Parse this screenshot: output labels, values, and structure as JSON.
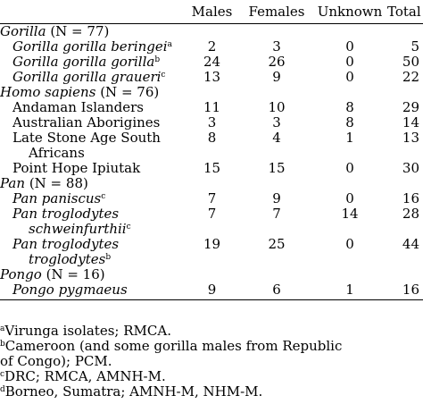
{
  "columns": [
    "",
    "Males",
    "Females",
    "Unknown",
    "Total"
  ],
  "rows": [
    {
      "type": "group",
      "genus": "Gorilla",
      "count": "(N = 77)"
    },
    {
      "type": "taxon",
      "label": "Gorilla gorilla beringei",
      "italic": true,
      "sup": "a",
      "males": "2",
      "females": "3",
      "unknown": "0",
      "total": "5"
    },
    {
      "type": "taxon",
      "label": "Gorilla gorilla gorilla",
      "italic": true,
      "sup": "b",
      "males": "24",
      "females": "26",
      "unknown": "0",
      "total": "50"
    },
    {
      "type": "taxon",
      "label": "Gorilla gorilla graueri",
      "italic": true,
      "sup": "c",
      "males": "13",
      "females": "9",
      "unknown": "0",
      "total": "22"
    },
    {
      "type": "group",
      "genus": "Homo sapiens",
      "count": "(N = 76)"
    },
    {
      "type": "taxon",
      "label": "Andaman Islanders",
      "italic": false,
      "sup": "",
      "males": "11",
      "females": "10",
      "unknown": "8",
      "total": "29"
    },
    {
      "type": "taxon",
      "label": "Australian Aborigines",
      "italic": false,
      "sup": "",
      "males": "3",
      "females": "3",
      "unknown": "8",
      "total": "14"
    },
    {
      "type": "taxon",
      "label": "Late Stone Age South",
      "label2": "Africans",
      "italic": false,
      "sup": "",
      "males": "8",
      "females": "4",
      "unknown": "1",
      "total": "13"
    },
    {
      "type": "taxon",
      "label": "Point Hope Ipiutak",
      "italic": false,
      "sup": "",
      "males": "15",
      "females": "15",
      "unknown": "0",
      "total": "30"
    },
    {
      "type": "group",
      "genus": "Pan",
      "count": "(N = 88)"
    },
    {
      "type": "taxon",
      "label": "Pan paniscus",
      "italic": true,
      "sup": "c",
      "males": "7",
      "females": "9",
      "unknown": "0",
      "total": "16"
    },
    {
      "type": "taxon",
      "label": "Pan troglodytes",
      "label2": "schweinfurthii",
      "italic": true,
      "sup2": "c",
      "males": "7",
      "females": "7",
      "unknown": "14",
      "total": "28"
    },
    {
      "type": "taxon",
      "label": "Pan troglodytes",
      "label2": "troglodytes",
      "italic": true,
      "sup2": "b",
      "males": "19",
      "females": "25",
      "unknown": "0",
      "total": "44"
    },
    {
      "type": "group",
      "genus": "Pongo",
      "count": "(N = 16)"
    },
    {
      "type": "taxon",
      "label": "Pongo pygmaeus",
      "italic": true,
      "sup": "",
      "males": "9",
      "females": "6",
      "unknown": "1",
      "total": "16"
    }
  ],
  "footnotes": [
    {
      "mark": "a",
      "lines": [
        "Virunga isolates; RMCA."
      ]
    },
    {
      "mark": "b",
      "lines": [
        "Cameroon (and some gorilla males from Republic",
        "of Congo); PCM."
      ]
    },
    {
      "mark": "c",
      "lines": [
        "DRC; RMCA, AMNH-M."
      ]
    },
    {
      "mark": "d",
      "lines": [
        "Borneo, Sumatra; AMNH-M, NHM-M."
      ]
    }
  ]
}
